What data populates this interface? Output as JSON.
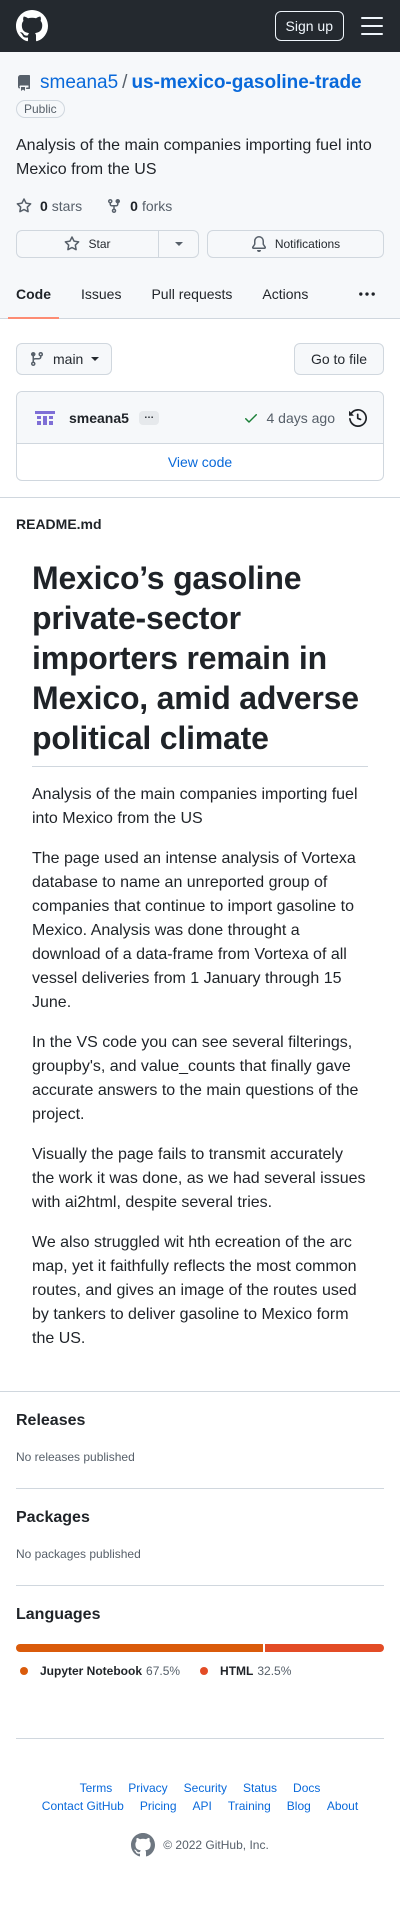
{
  "header": {
    "logo_icon": "github-mark-icon",
    "signup_label": "Sign up",
    "menu_icon": "hamburger-icon"
  },
  "repo": {
    "owner": "smeana5",
    "separator": "/",
    "name": "us-mexico-gasoline-trade",
    "visibility": "Public",
    "description": "Analysis of the main companies importing fuel into Mexico from the US",
    "stars_count": "0",
    "stars_label": "stars",
    "forks_count": "0",
    "forks_label": "forks"
  },
  "actions": {
    "star_label": "Star",
    "notifications_label": "Notifications"
  },
  "tabs": [
    {
      "label": "Code",
      "active": true
    },
    {
      "label": "Issues"
    },
    {
      "label": "Pull requests"
    },
    {
      "label": "Actions"
    }
  ],
  "code": {
    "branch": "main",
    "goto_label": "Go to file",
    "commit_author": "smeana5",
    "commit_ellipsis": "…",
    "commit_time": "4 days ago",
    "view_code_label": "View code"
  },
  "readme": {
    "filename": "README.md",
    "heading": "Mexico’s gasoline private-sector importers remain in Mexico, amid adverse political climate",
    "paragraphs": [
      "Analysis of the main companies importing fuel into Mexico from the US",
      "The page used an intense analysis of Vortexa database to name an unreported group of companies that continue to import gasoline to Mexico. Analysis was done throught a download of a data-frame from Vortexa of all vessel deliveries from 1 January through 15 June.",
      "In the VS code you can see several filterings, groupby's, and value_counts that finally gave accurate answers to the main questions of the project.",
      "Visually the page fails to transmit accurately the work it was done, as we had several issues with ai2html, despite several tries.",
      "We also struggled wit hth ecreation of the arc map, yet it faithfully reflects the most common routes, and gives an image of the routes used by tankers to deliver gasoline to Mexico form the US."
    ]
  },
  "releases": {
    "title": "Releases",
    "text": "No releases published"
  },
  "packages": {
    "title": "Packages",
    "text": "No packages published"
  },
  "languages": {
    "title": "Languages",
    "items": [
      {
        "name": "Jupyter Notebook",
        "percent": "67.5%",
        "value": 67.5,
        "color": "#DA5B0B"
      },
      {
        "name": "HTML",
        "percent": "32.5%",
        "value": 32.5,
        "color": "#E34C26"
      }
    ]
  },
  "footer": {
    "links": [
      "Terms",
      "Privacy",
      "Security",
      "Status",
      "Docs",
      "Contact GitHub",
      "Pricing",
      "API",
      "Training",
      "Blog",
      "About"
    ],
    "copyright": "© 2022 GitHub, Inc."
  }
}
